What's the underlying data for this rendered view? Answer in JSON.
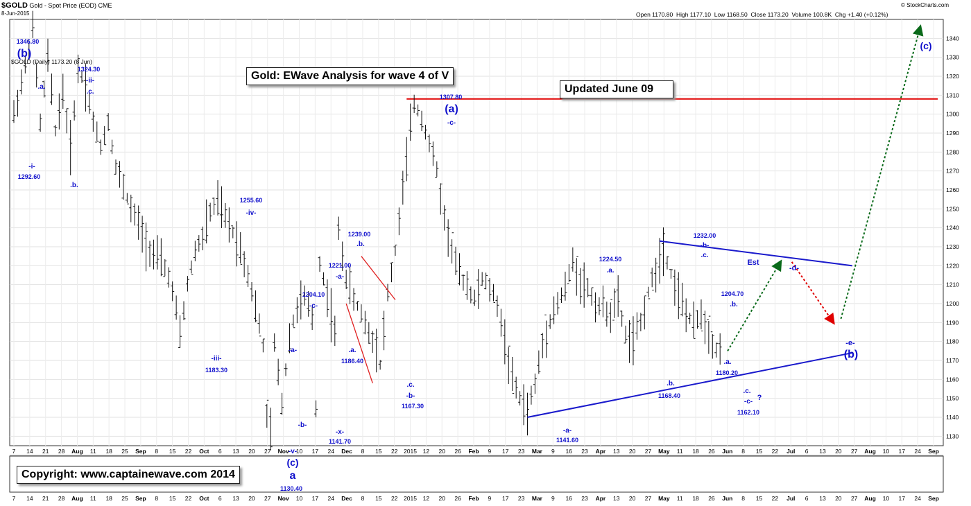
{
  "header": {
    "symbol": "$GOLD",
    "description": "Gold - Spot Price (EOD)",
    "exchange": "CME",
    "date": "8-Jun-2015",
    "brand": "© StockCharts.com",
    "open_label": "Open",
    "open": "1170.80",
    "high_label": "High",
    "high": "1177.10",
    "low_label": "Low",
    "low": "1168.50",
    "close_label": "Close",
    "close": "1173.20",
    "volume_label": "Volume",
    "volume": "100.8K",
    "chg_label": "Chg",
    "chg": "+1.40 (+0.12%)",
    "legend": "$GOLD (Daily) 1173.20 (8 Jun)"
  },
  "titles": {
    "main": "Gold: EWave Analysis for wave 4 of V",
    "updated": "Updated June 09",
    "copyright": "Copyright:   www.captainewave.com 2014"
  },
  "colors": {
    "bars": "#111111",
    "wave_labels": "#1010cc",
    "resistance": "#e00000",
    "trendline": "#1a1acc",
    "wedge": "#e02020",
    "bull_arrow": "#0a6a1a",
    "bear_arrow": "#e00000"
  },
  "chart_data": {
    "type": "ohlc",
    "ylim": [
      1125,
      1350
    ],
    "yticks": [
      1130,
      1140,
      1150,
      1160,
      1170,
      1180,
      1190,
      1200,
      1210,
      1220,
      1230,
      1240,
      1250,
      1260,
      1270,
      1280,
      1290,
      1300,
      1310,
      1320,
      1330,
      1340
    ],
    "xticks": [
      "7",
      "14",
      "21",
      "28",
      "Aug",
      "11",
      "18",
      "25",
      "Sep",
      "8",
      "15",
      "22",
      "Oct",
      "6",
      "13",
      "20",
      "27",
      "Nov",
      "10",
      "17",
      "24",
      "Dec",
      "8",
      "15",
      "22",
      "2015",
      "12",
      "20",
      "26",
      "Feb",
      "9",
      "17",
      "23",
      "Mar",
      "9",
      "16",
      "23",
      "Apr",
      "13",
      "20",
      "27",
      "May",
      "11",
      "18",
      "26",
      "Jun",
      "8",
      "15",
      "22",
      "Jul",
      "6",
      "13",
      "20",
      "27",
      "Aug",
      "10",
      "17",
      "24",
      "Sep"
    ],
    "resistance": 1308,
    "price_path": [
      [
        0,
        1300
      ],
      [
        3,
        1325
      ],
      [
        5,
        1345
      ],
      [
        7,
        1295
      ],
      [
        9,
        1330
      ],
      [
        11,
        1292
      ],
      [
        13,
        1312
      ],
      [
        15,
        1282
      ],
      [
        17,
        1324
      ],
      [
        19,
        1316
      ],
      [
        21,
        1296
      ],
      [
        23,
        1283
      ],
      [
        25,
        1296
      ],
      [
        27,
        1272
      ],
      [
        29,
        1262
      ],
      [
        31,
        1250
      ],
      [
        33,
        1242
      ],
      [
        35,
        1232
      ],
      [
        37,
        1226
      ],
      [
        39,
        1222
      ],
      [
        41,
        1215
      ],
      [
        43,
        1196
      ],
      [
        44,
        1183
      ],
      [
        46,
        1210
      ],
      [
        48,
        1228
      ],
      [
        50,
        1235
      ],
      [
        52,
        1248
      ],
      [
        54,
        1254
      ],
      [
        56,
        1245
      ],
      [
        58,
        1238
      ],
      [
        60,
        1229
      ],
      [
        62,
        1216
      ],
      [
        64,
        1198
      ],
      [
        66,
        1178
      ],
      [
        67,
        1140
      ],
      [
        68,
        1133
      ],
      [
        69,
        1178
      ],
      [
        71,
        1148
      ],
      [
        73,
        1183
      ],
      [
        75,
        1198
      ],
      [
        77,
        1203
      ],
      [
        79,
        1192
      ],
      [
        80,
        1145
      ],
      [
        81,
        1222
      ],
      [
        83,
        1204
      ],
      [
        85,
        1185
      ],
      [
        86,
        1238
      ],
      [
        88,
        1214
      ],
      [
        90,
        1202
      ],
      [
        92,
        1195
      ],
      [
        94,
        1185
      ],
      [
        96,
        1178
      ],
      [
        97,
        1168
      ],
      [
        99,
        1205
      ],
      [
        101,
        1228
      ],
      [
        103,
        1260
      ],
      [
        105,
        1292
      ],
      [
        106,
        1306
      ],
      [
        108,
        1298
      ],
      [
        110,
        1285
      ],
      [
        112,
        1270
      ],
      [
        114,
        1245
      ],
      [
        116,
        1228
      ],
      [
        118,
        1215
      ],
      [
        120,
        1210
      ],
      [
        122,
        1202
      ],
      [
        124,
        1213
      ],
      [
        126,
        1208
      ],
      [
        128,
        1200
      ],
      [
        130,
        1180
      ],
      [
        132,
        1160
      ],
      [
        134,
        1150
      ],
      [
        136,
        1143
      ],
      [
        138,
        1158
      ],
      [
        140,
        1178
      ],
      [
        142,
        1192
      ],
      [
        144,
        1200
      ],
      [
        146,
        1208
      ],
      [
        148,
        1222
      ],
      [
        150,
        1212
      ],
      [
        152,
        1208
      ],
      [
        154,
        1200
      ],
      [
        156,
        1198
      ],
      [
        158,
        1195
      ],
      [
        160,
        1202
      ],
      [
        162,
        1183
      ],
      [
        164,
        1180
      ],
      [
        166,
        1190
      ],
      [
        168,
        1206
      ],
      [
        170,
        1218
      ],
      [
        172,
        1230
      ],
      [
        174,
        1216
      ],
      [
        176,
        1205
      ],
      [
        178,
        1195
      ],
      [
        180,
        1188
      ],
      [
        182,
        1195
      ],
      [
        184,
        1184
      ],
      [
        186,
        1176
      ],
      [
        188,
        1173
      ]
    ],
    "trendlines": {
      "lower_blue": [
        [
          136,
          1140
        ],
        [
          222,
          1174
        ]
      ],
      "upper_blue": [
        [
          171,
          1233
        ],
        [
          222,
          1220
        ]
      ],
      "red_wedge_upper": [
        [
          92,
          1225
        ],
        [
          101,
          1202
        ]
      ],
      "red_wedge_lower": [
        [
          88,
          1200
        ],
        [
          95,
          1158
        ]
      ]
    },
    "projection": {
      "to_d": [
        [
          189,
          1175
        ],
        [
          203,
          1222
        ]
      ],
      "to_e": [
        [
          206,
          1222
        ],
        [
          217,
          1190
        ]
      ],
      "to_c": [
        [
          219,
          1192
        ],
        [
          240,
          1346
        ]
      ]
    }
  },
  "annotations": [
    {
      "t": "1346.80",
      "x": 40,
      "y": 63,
      "s": 9
    },
    {
      "t": "(b)",
      "x": 35,
      "y": 82,
      "s": 16
    },
    {
      "t": ".a.",
      "x": 60,
      "y": 128,
      "s": 10
    },
    {
      "t": "1324.30",
      "x": 128,
      "y": 103,
      "s": 9
    },
    {
      "t": "-ii-",
      "x": 130,
      "y": 119,
      "s": 10
    },
    {
      "t": ".c.",
      "x": 130,
      "y": 135,
      "s": 10
    },
    {
      "t": "-i-",
      "x": 46,
      "y": 243,
      "s": 10
    },
    {
      "t": "1292.60",
      "x": 42,
      "y": 258,
      "s": 9
    },
    {
      "t": ".b.",
      "x": 107,
      "y": 270,
      "s": 10
    },
    {
      "t": "1255.60",
      "x": 362,
      "y": 292,
      "s": 9
    },
    {
      "t": "-iv-",
      "x": 362,
      "y": 310,
      "s": 10
    },
    {
      "t": "-iii-",
      "x": 312,
      "y": 520,
      "s": 10
    },
    {
      "t": "1183.30",
      "x": 312,
      "y": 537,
      "s": 9
    },
    {
      "t": "1204.10",
      "x": 452,
      "y": 428,
      "s": 9
    },
    {
      "t": "-c-",
      "x": 452,
      "y": 444,
      "s": 10
    },
    {
      "t": "-a-",
      "x": 422,
      "y": 508,
      "s": 10
    },
    {
      "t": "-b-",
      "x": 436,
      "y": 616,
      "s": 10
    },
    {
      "t": "-v-",
      "x": 422,
      "y": 654,
      "s": 10
    },
    {
      "t": "(c)",
      "x": 422,
      "y": 672,
      "s": 14
    },
    {
      "t": "a",
      "x": 422,
      "y": 691,
      "s": 16
    },
    {
      "t": "1130.40",
      "x": 420,
      "y": 708,
      "s": 9
    },
    {
      "t": "1221.00",
      "x": 490,
      "y": 386,
      "s": 9
    },
    {
      "t": "-a-",
      "x": 490,
      "y": 402,
      "s": 10
    },
    {
      "t": ".a.",
      "x": 508,
      "y": 508,
      "s": 10
    },
    {
      "t": "1186.40",
      "x": 508,
      "y": 524,
      "s": 9
    },
    {
      "t": "-x-",
      "x": 490,
      "y": 626,
      "s": 10
    },
    {
      "t": "1141.70",
      "x": 490,
      "y": 640,
      "s": 9
    },
    {
      "t": "1239.00",
      "x": 518,
      "y": 341,
      "s": 9
    },
    {
      "t": ".b.",
      "x": 520,
      "y": 355,
      "s": 10
    },
    {
      "t": ".c.",
      "x": 592,
      "y": 558,
      "s": 10
    },
    {
      "t": "-b-",
      "x": 592,
      "y": 574,
      "s": 10
    },
    {
      "t": "1167.30",
      "x": 595,
      "y": 589,
      "s": 9
    },
    {
      "t": "1307.80",
      "x": 650,
      "y": 143,
      "s": 9
    },
    {
      "t": "(a)",
      "x": 651,
      "y": 162,
      "s": 16
    },
    {
      "t": "-c-",
      "x": 651,
      "y": 180,
      "s": 10
    },
    {
      "t": "1224.50",
      "x": 880,
      "y": 377,
      "s": 9
    },
    {
      "t": ".a.",
      "x": 880,
      "y": 393,
      "s": 10
    },
    {
      "t": "1232.00",
      "x": 1016,
      "y": 343,
      "s": 9
    },
    {
      "t": "-b-",
      "x": 1016,
      "y": 357,
      "s": 10
    },
    {
      "t": ".c.",
      "x": 1016,
      "y": 371,
      "s": 10
    },
    {
      "t": "1204.70",
      "x": 1056,
      "y": 427,
      "s": 9
    },
    {
      "t": ".b.",
      "x": 1058,
      "y": 442,
      "s": 10
    },
    {
      "t": ".a.",
      "x": 1049,
      "y": 525,
      "s": 10
    },
    {
      "t": "1180.20",
      "x": 1048,
      "y": 541,
      "s": 9
    },
    {
      "t": ".b.",
      "x": 967,
      "y": 556,
      "s": 10
    },
    {
      "t": "1168.40",
      "x": 965,
      "y": 574,
      "s": 9
    },
    {
      "t": ".c.",
      "x": 1077,
      "y": 567,
      "s": 10
    },
    {
      "t": "-c-",
      "x": 1079,
      "y": 582,
      "s": 10
    },
    {
      "t": "?",
      "x": 1095,
      "y": 577,
      "s": 11
    },
    {
      "t": "1162.10",
      "x": 1079,
      "y": 598,
      "s": 9
    },
    {
      "t": "-a-",
      "x": 818,
      "y": 624,
      "s": 10
    },
    {
      "t": "1141.60",
      "x": 818,
      "y": 638,
      "s": 9
    },
    {
      "t": "Est",
      "x": 1086,
      "y": 382,
      "s": 11
    },
    {
      "t": "-d-",
      "x": 1145,
      "y": 390,
      "s": 11
    },
    {
      "t": "-e-",
      "x": 1226,
      "y": 498,
      "s": 11
    },
    {
      "t": "(b)",
      "x": 1227,
      "y": 516,
      "s": 16
    },
    {
      "t": "(c)",
      "x": 1335,
      "y": 71,
      "s": 14
    }
  ]
}
